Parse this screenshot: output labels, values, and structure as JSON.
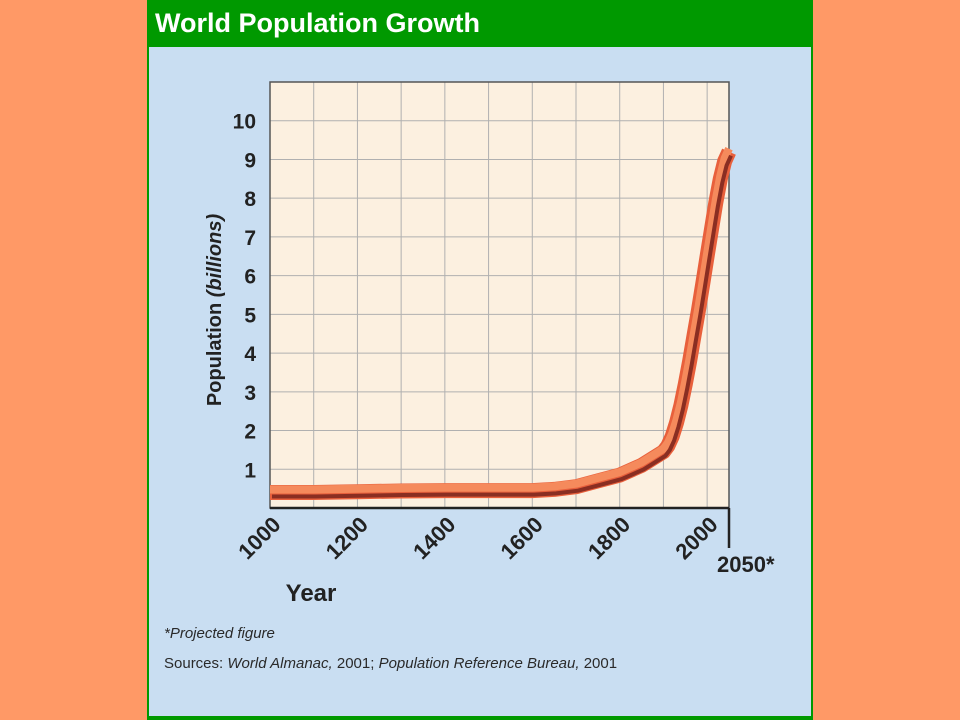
{
  "colors": {
    "page_background": "#FF9966",
    "panel_background": "#C9DEF2",
    "title_bar": "#009900",
    "plot_background": "#FCF0E0",
    "grid": "#B0B0B0",
    "line_outer": "#E8603C",
    "line_core": "#8A2E22"
  },
  "footnote": "*Projected figure",
  "sources": {
    "prefix": "Sources: ",
    "source1": "World Almanac,",
    "year1": " 2001; ",
    "source2": "Population Reference Bureau,",
    "year2": " 2001"
  },
  "chart_data": {
    "type": "line",
    "title": "World Population Growth",
    "xlabel": "Year",
    "ylabel_main": "Population ",
    "ylabel_unit": "(billions)",
    "xlim": [
      1000,
      2050
    ],
    "ylim": [
      0,
      11
    ],
    "x_ticks": [
      {
        "value": 1000,
        "label": "1000"
      },
      {
        "value": 1200,
        "label": "1200"
      },
      {
        "value": 1400,
        "label": "1400"
      },
      {
        "value": 1600,
        "label": "1600"
      },
      {
        "value": 1800,
        "label": "1800"
      },
      {
        "value": 2000,
        "label": "2000"
      },
      {
        "value": 2050,
        "label": "2050*"
      }
    ],
    "y_ticks": [
      1,
      2,
      3,
      4,
      5,
      6,
      7,
      8,
      9,
      10
    ],
    "grid": true,
    "series": [
      {
        "x": [
          1000,
          1100,
          1200,
          1300,
          1400,
          1500,
          1600,
          1650,
          1700,
          1750,
          1800,
          1850,
          1900,
          1910,
          1920,
          1930,
          1940,
          1950,
          1960,
          1970,
          1980,
          1990,
          2000,
          2010,
          2020,
          2030,
          2040,
          2050
        ],
        "y": [
          0.4,
          0.4,
          0.42,
          0.44,
          0.45,
          0.45,
          0.45,
          0.48,
          0.55,
          0.7,
          0.85,
          1.1,
          1.45,
          1.6,
          1.85,
          2.2,
          2.65,
          3.2,
          3.8,
          4.45,
          5.1,
          5.8,
          6.5,
          7.2,
          7.9,
          8.5,
          8.95,
          9.2
        ]
      }
    ]
  }
}
